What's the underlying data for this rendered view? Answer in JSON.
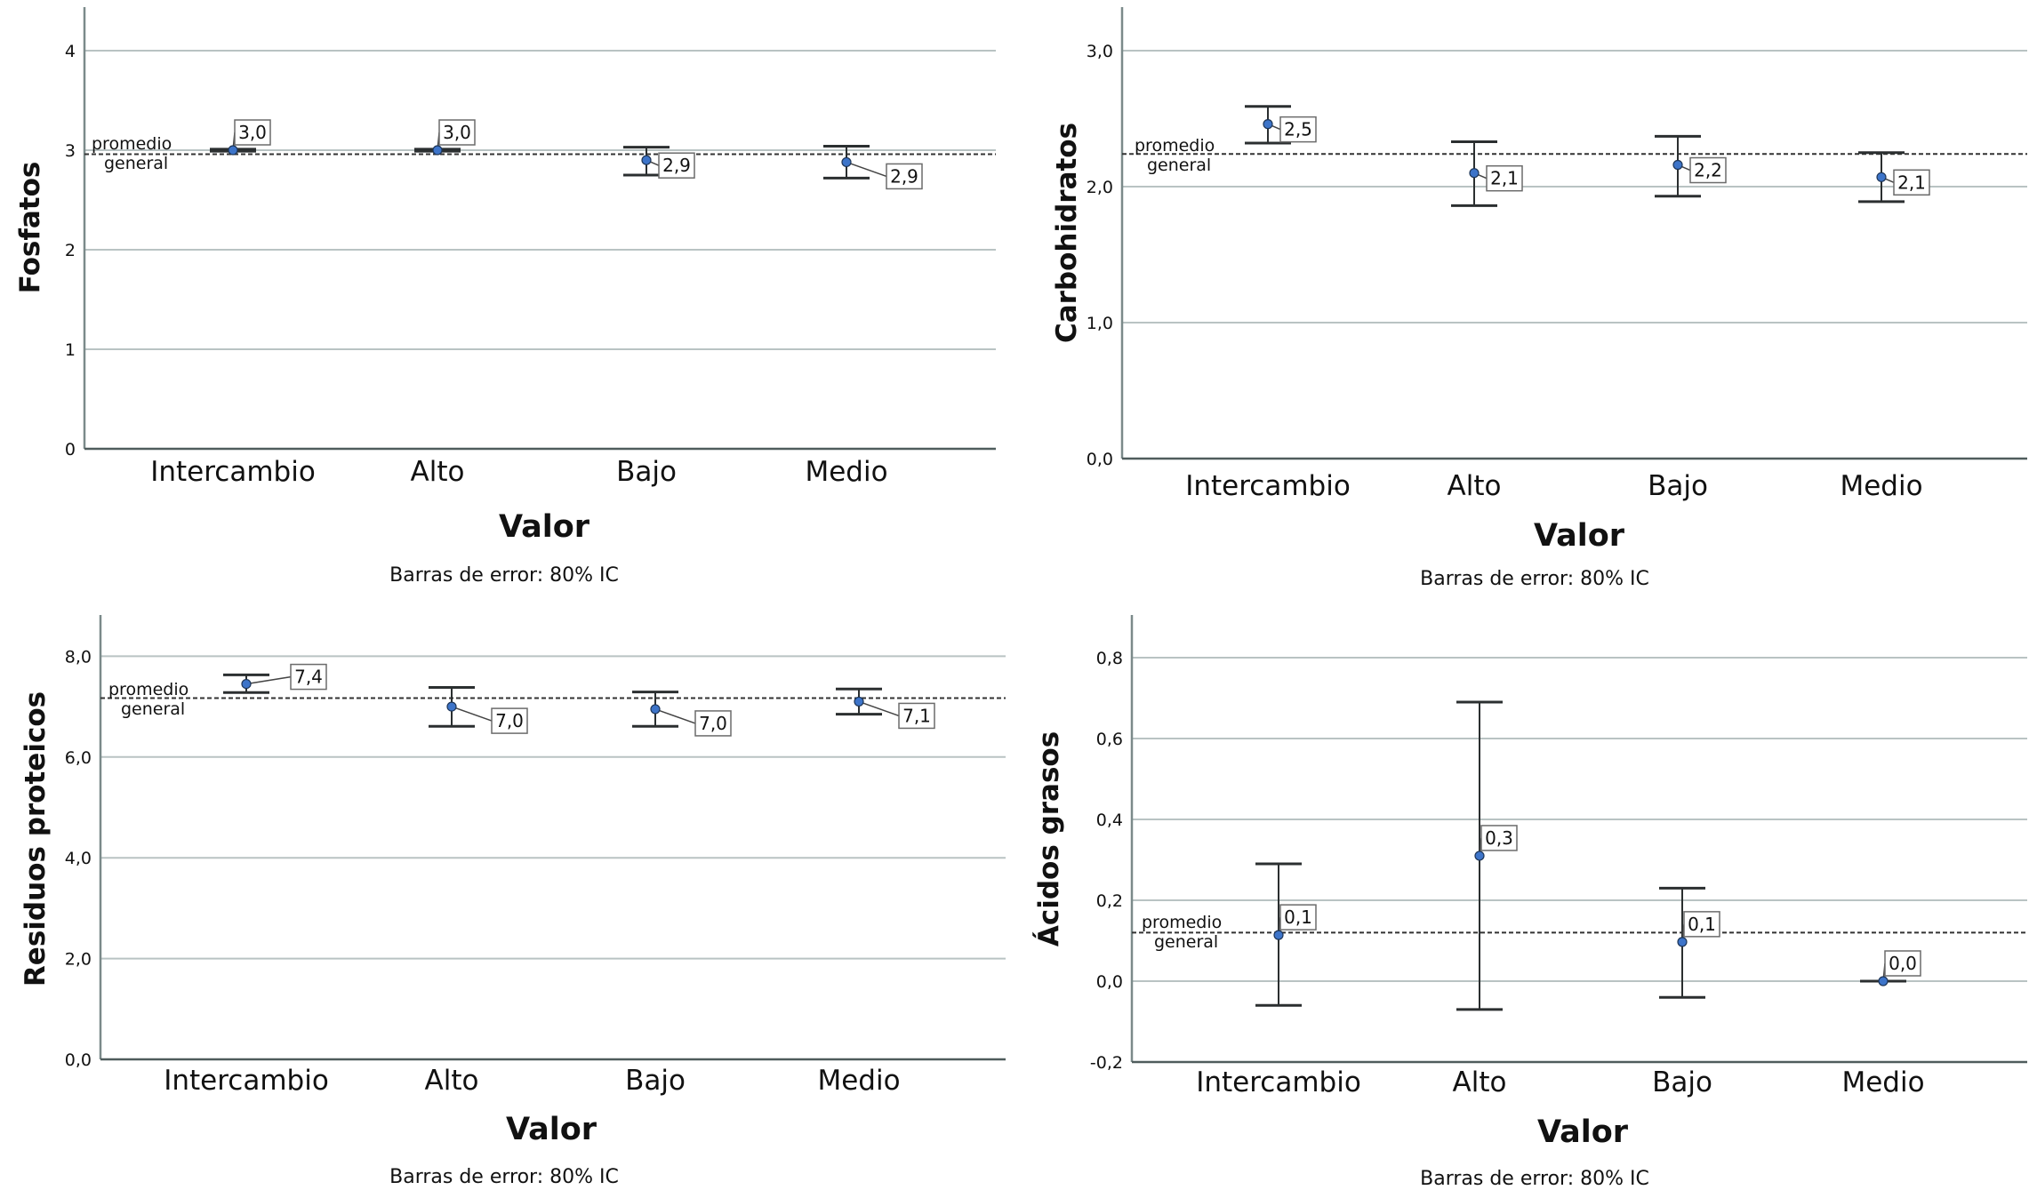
{
  "colors": {
    "marker_fill": "#3d74c9",
    "marker_stroke": "#1d3557",
    "gridline": "#b9c3c3",
    "axis": "#7b8a8a",
    "errorbar": "#2b2f30",
    "refline": "#333333",
    "label_border": "#6b6b6b"
  },
  "chart_data": [
    {
      "type": "errorbar",
      "ylabel": "Fosfatos",
      "xlabel": "Valor",
      "caption": "Barras de error: 80% IC",
      "categories": [
        "Intercambio",
        "Alto",
        "Bajo",
        "Medio"
      ],
      "ylim": [
        0,
        4.45
      ],
      "yticks": [
        0,
        1,
        2,
        3,
        4
      ],
      "ytick_labels": [
        "0",
        "1",
        "2",
        "3",
        "4"
      ],
      "grid": true,
      "means": [
        3.0,
        3.0,
        2.9,
        2.88
      ],
      "ci_lower": [
        2.99,
        2.99,
        2.75,
        2.72
      ],
      "ci_upper": [
        3.01,
        3.01,
        3.03,
        3.04
      ],
      "value_labels": [
        "3,0",
        "3,0",
        "2,9",
        "2,9"
      ],
      "reference_line": {
        "value": 2.96,
        "label_line1": "promedio",
        "label_line2": "general"
      }
    },
    {
      "type": "errorbar",
      "ylabel": "Carbohidratos",
      "xlabel": "Valor",
      "caption": "Barras de error: 80% IC",
      "categories": [
        "Intercambio",
        "Alto",
        "Bajo",
        "Medio"
      ],
      "ylim": [
        0,
        3.3
      ],
      "yticks": [
        0,
        1,
        2,
        3
      ],
      "ytick_labels": [
        "0,0",
        "1,0",
        "2,0",
        "3,0"
      ],
      "grid": true,
      "means": [
        2.46,
        2.1,
        2.16,
        2.07
      ],
      "ci_lower": [
        2.32,
        1.86,
        1.93,
        1.89
      ],
      "ci_upper": [
        2.59,
        2.33,
        2.37,
        2.25
      ],
      "value_labels": [
        "2,5",
        "2,1",
        "2,2",
        "2,1"
      ],
      "reference_line": {
        "value": 2.24,
        "label_line1": "promedio",
        "label_line2": "general"
      }
    },
    {
      "type": "errorbar",
      "ylabel": "Residuos proteicos",
      "xlabel": "Valor",
      "caption": "Barras de error: 80% IC",
      "categories": [
        "Intercambio",
        "Alto",
        "Bajo",
        "Medio"
      ],
      "ylim": [
        0,
        8.9
      ],
      "yticks": [
        0,
        2,
        4,
        6,
        8
      ],
      "ytick_labels": [
        "0,0",
        "2,0",
        "4,0",
        "6,0",
        "8,0"
      ],
      "grid": true,
      "means": [
        7.45,
        7.0,
        6.95,
        7.1
      ],
      "ci_lower": [
        7.28,
        6.61,
        6.61,
        6.85
      ],
      "ci_upper": [
        7.63,
        7.38,
        7.29,
        7.35
      ],
      "value_labels": [
        "7,4",
        "7,0",
        "7,0",
        "7,1"
      ],
      "reference_line": {
        "value": 7.17,
        "label_line1": "promedio",
        "label_line2": "general"
      }
    },
    {
      "type": "errorbar",
      "ylabel": "Ácidos grasos",
      "xlabel": "Valor",
      "caption": "Barras de error: 80% IC",
      "categories": [
        "Intercambio",
        "Alto",
        "Bajo",
        "Medio"
      ],
      "ylim": [
        -0.2,
        0.9
      ],
      "yticks": [
        -0.2,
        0.0,
        0.2,
        0.4,
        0.6,
        0.8
      ],
      "ytick_labels": [
        "-0,2",
        "0,0",
        "0,2",
        "0,4",
        "0,6",
        "0,8"
      ],
      "grid": true,
      "means": [
        0.114,
        0.31,
        0.097,
        0.0
      ],
      "ci_lower": [
        -0.06,
        -0.07,
        -0.04,
        0.0
      ],
      "ci_upper": [
        0.29,
        0.69,
        0.23,
        0.0
      ],
      "value_labels": [
        "0,1",
        "0,3",
        "0,1",
        "0,0"
      ],
      "reference_line": {
        "value": 0.12,
        "label_line1": "promedio",
        "label_line2": "general"
      }
    }
  ]
}
